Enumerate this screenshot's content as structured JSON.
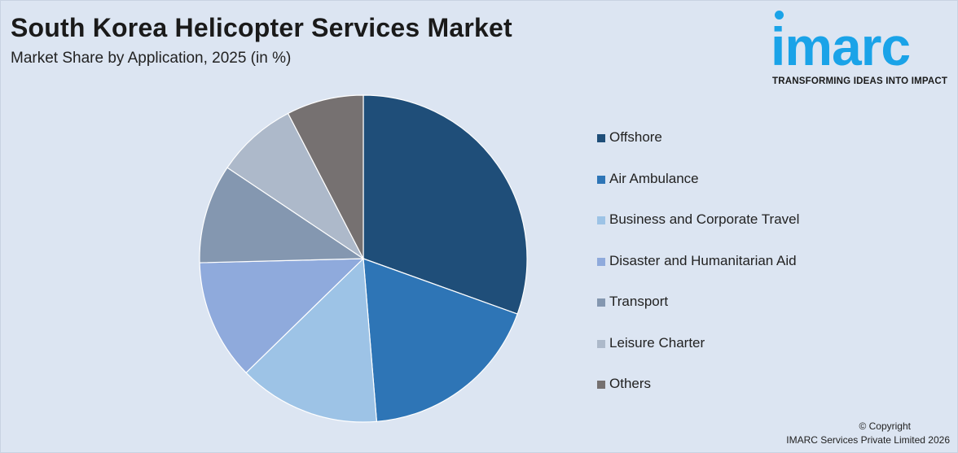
{
  "header": {
    "title": "South Korea Helicopter Services Market",
    "subtitle": "Market Share by Application, 2025 (in %)"
  },
  "logo": {
    "word": "imarc",
    "tagline": "TRANSFORMING IDEAS INTO IMPACT",
    "color": "#1aa3e8"
  },
  "chart_data": {
    "type": "pie",
    "title": "South Korea Helicopter Services Market",
    "subtitle": "Market Share by Application, 2025 (in %)",
    "legend_position": "right",
    "categories": [
      "Offshore",
      "Air Ambulance",
      "Business and Corporate Travel",
      "Disaster and Humanitarian Aid",
      "Transport",
      "Leisure Charter",
      "Others"
    ],
    "values": [
      30.5,
      18.2,
      14.0,
      11.9,
      9.8,
      8.0,
      7.6
    ],
    "colors": [
      "#1f4e79",
      "#2e75b6",
      "#9dc3e6",
      "#8faadc",
      "#8497b0",
      "#adb9ca",
      "#767171"
    ]
  },
  "footer": {
    "copyright_line1": "© Copyright",
    "copyright_line2": "IMARC Services Private Limited 2026"
  }
}
